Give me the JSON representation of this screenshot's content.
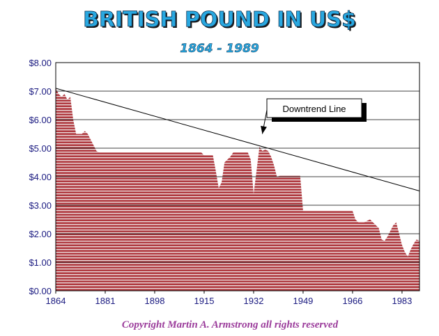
{
  "chart_data": {
    "type": "area",
    "title": "BRITISH POUND IN US$",
    "subtitle": "1864 - 1989",
    "xlabel": "",
    "ylabel": "",
    "xlim": [
      1864,
      1989
    ],
    "ylim": [
      0,
      8
    ],
    "x_ticks": [
      1864,
      1881,
      1898,
      1915,
      1932,
      1949,
      1966,
      1983
    ],
    "y_ticks": [
      {
        "value": 0,
        "label": "$0.00"
      },
      {
        "value": 1,
        "label": "$1.00"
      },
      {
        "value": 2,
        "label": "$2.00"
      },
      {
        "value": 3,
        "label": "$3.00"
      },
      {
        "value": 4,
        "label": "$4.00"
      },
      {
        "value": 5,
        "label": "$5.00"
      },
      {
        "value": 6,
        "label": "$6.00"
      },
      {
        "value": 7,
        "label": "$7.00"
      },
      {
        "value": 8,
        "label": "$8.00"
      }
    ],
    "grid": {
      "horizontal": true,
      "vertical": false
    },
    "series": [
      {
        "x": [
          1864,
          1865,
          1866,
          1867,
          1868,
          1869,
          1870,
          1871,
          1872,
          1873,
          1874,
          1875,
          1876,
          1877,
          1878,
          1879,
          1880,
          1890,
          1900,
          1910,
          1914,
          1915,
          1916,
          1917,
          1918,
          1919,
          1920,
          1921,
          1922,
          1923,
          1924,
          1925,
          1926,
          1927,
          1928,
          1929,
          1930,
          1931,
          1932,
          1933,
          1934,
          1935,
          1936,
          1937,
          1938,
          1939,
          1940,
          1941,
          1945,
          1946,
          1947,
          1948,
          1949,
          1950,
          1955,
          1960,
          1966,
          1967,
          1968,
          1970,
          1971,
          1972,
          1973,
          1974,
          1975,
          1976,
          1977,
          1978,
          1979,
          1980,
          1981,
          1982,
          1983,
          1984,
          1985,
          1986,
          1987,
          1988,
          1989
        ],
        "y": [
          7.1,
          6.9,
          6.8,
          6.9,
          6.7,
          6.8,
          6.0,
          5.5,
          5.5,
          5.5,
          5.6,
          5.5,
          5.3,
          5.1,
          4.9,
          4.85,
          4.85,
          4.85,
          4.85,
          4.85,
          4.85,
          4.75,
          4.75,
          4.75,
          4.75,
          4.2,
          3.6,
          3.8,
          4.5,
          4.6,
          4.7,
          4.85,
          4.85,
          4.85,
          4.85,
          4.85,
          4.85,
          4.6,
          3.4,
          4.2,
          5.05,
          4.9,
          4.95,
          4.9,
          4.7,
          4.4,
          4.0,
          4.03,
          4.03,
          4.03,
          4.03,
          4.03,
          2.8,
          2.8,
          2.8,
          2.8,
          2.8,
          2.5,
          2.4,
          2.4,
          2.45,
          2.5,
          2.4,
          2.3,
          2.2,
          1.8,
          1.75,
          1.9,
          2.1,
          2.3,
          2.4,
          2.0,
          1.6,
          1.35,
          1.2,
          1.45,
          1.65,
          1.8,
          1.75
        ]
      }
    ],
    "trendline": {
      "from": [
        1864,
        7.1
      ],
      "to": [
        1989,
        3.5
      ]
    },
    "annotations": [
      {
        "text": "Downtrend Line",
        "points_to": [
          1935,
          5.5
        ]
      }
    ],
    "footer": "Copyright Martin A. Armstrong all rights reserved",
    "colors": {
      "title": "#29a8e0",
      "title_shadow": "#1c1c1c",
      "subtitle": "#29a8e0",
      "axis_text": "#1a1a80",
      "area_fill": "#b03a40",
      "area_stripe": "#efe4e4",
      "footer": "#9b3c9b",
      "grid": "#000000"
    }
  }
}
